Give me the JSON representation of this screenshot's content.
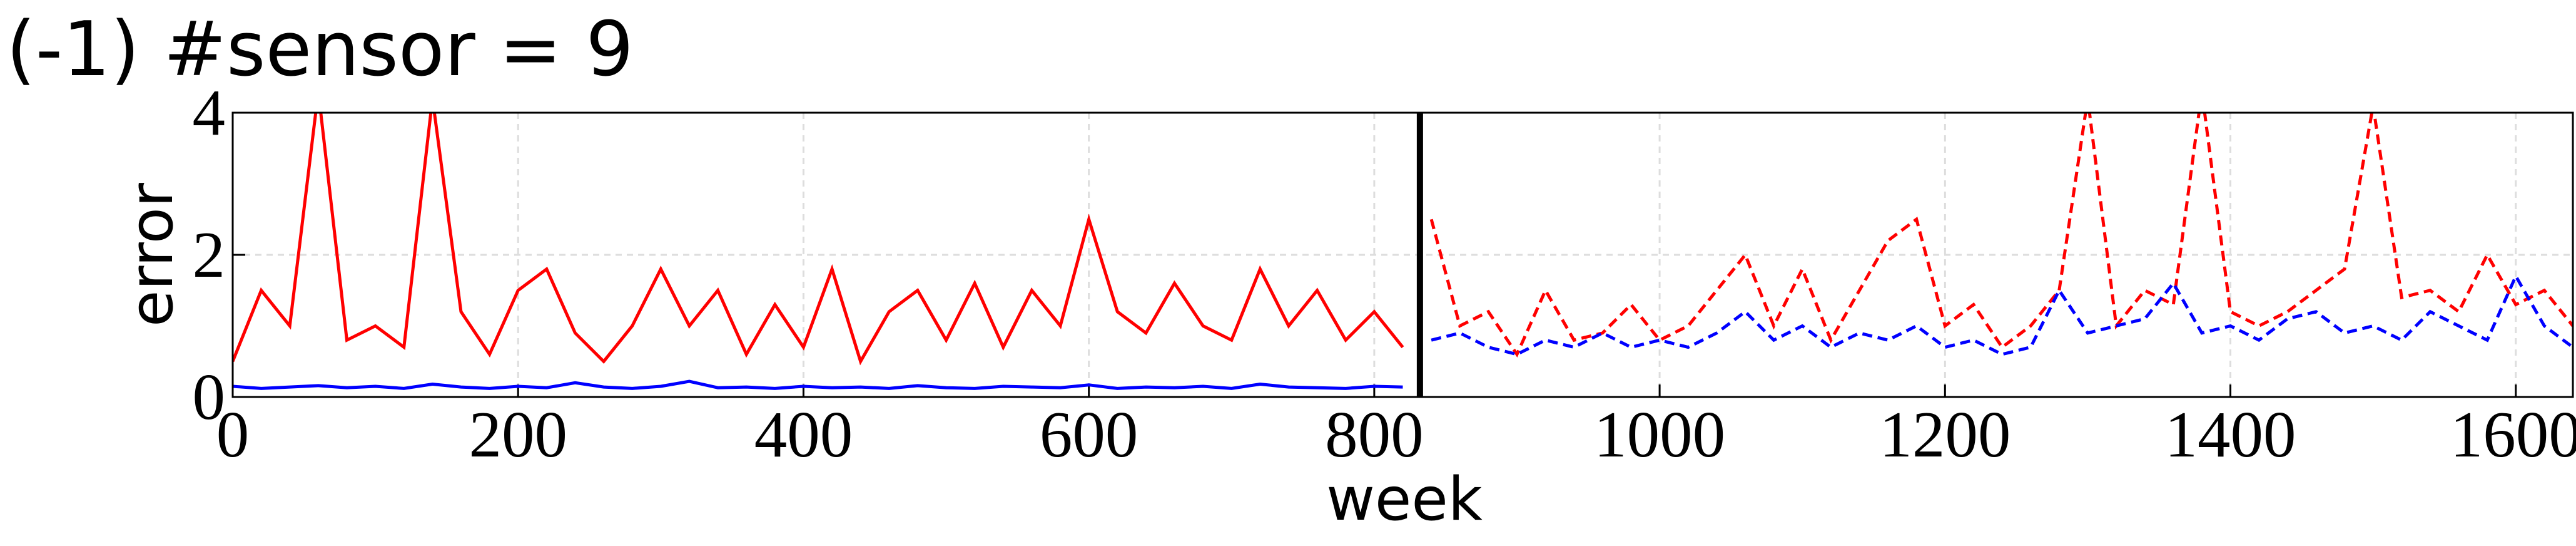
{
  "chart_data": {
    "type": "line",
    "title": "(-1) #sensor = 9",
    "xlabel": "week",
    "ylabel": "error",
    "x": [
      0,
      20,
      40,
      60,
      80,
      100,
      120,
      140,
      160,
      180,
      200,
      220,
      240,
      260,
      280,
      300,
      320,
      340,
      360,
      380,
      400,
      420,
      440,
      460,
      480,
      500,
      520,
      540,
      560,
      580,
      600,
      620,
      640,
      660,
      680,
      700,
      720,
      740,
      760,
      780,
      800,
      820,
      840,
      860,
      880,
      900,
      920,
      940,
      960,
      980,
      1000,
      1020,
      1040,
      1060,
      1080,
      1100,
      1120,
      1140,
      1160,
      1180,
      1200,
      1220,
      1240,
      1260,
      1280,
      1300,
      1320,
      1340,
      1360,
      1380,
      1400,
      1420,
      1440,
      1460,
      1480,
      1500,
      1520,
      1540,
      1560,
      1580,
      1600,
      1620,
      1640
    ],
    "series": [
      {
        "color": "#ff0000",
        "dashed": false,
        "values": [
          0.5,
          1.5,
          1.0,
          4.3,
          0.8,
          1.0,
          0.7,
          4.2,
          1.2,
          0.6,
          1.5,
          1.8,
          0.9,
          0.5,
          1.0,
          1.8,
          1.0,
          1.5,
          0.6,
          1.3,
          0.7,
          1.8,
          0.5,
          1.2,
          1.5,
          0.8,
          1.6,
          0.7,
          1.5,
          1.0,
          2.5,
          1.2,
          0.9,
          1.6,
          1.0,
          0.8,
          1.8,
          1.0,
          1.5,
          0.8,
          1.2,
          0.7,
          null,
          null,
          null,
          null,
          null,
          null,
          null,
          null,
          null,
          null,
          null,
          null,
          null,
          null,
          null,
          null,
          null,
          null,
          null,
          null,
          null,
          null,
          null,
          null,
          null,
          null,
          null,
          null,
          null,
          null,
          null,
          null,
          null,
          null,
          null,
          null,
          null,
          null,
          null,
          null,
          null
        ]
      },
      {
        "color": "#0000ff",
        "dashed": false,
        "values": [
          0.15,
          0.12,
          0.14,
          0.16,
          0.13,
          0.15,
          0.12,
          0.18,
          0.14,
          0.12,
          0.15,
          0.13,
          0.2,
          0.14,
          0.12,
          0.15,
          0.22,
          0.13,
          0.14,
          0.12,
          0.15,
          0.13,
          0.14,
          0.12,
          0.16,
          0.13,
          0.12,
          0.15,
          0.14,
          0.13,
          0.17,
          0.12,
          0.14,
          0.13,
          0.15,
          0.12,
          0.18,
          0.14,
          0.13,
          0.12,
          0.15,
          0.14,
          null,
          null,
          null,
          null,
          null,
          null,
          null,
          null,
          null,
          null,
          null,
          null,
          null,
          null,
          null,
          null,
          null,
          null,
          null,
          null,
          null,
          null,
          null,
          null,
          null,
          null,
          null,
          null,
          null,
          null,
          null,
          null,
          null,
          null,
          null,
          null,
          null,
          null,
          null,
          null,
          null
        ]
      },
      {
        "color": "#ff0000",
        "dashed": true,
        "values": [
          null,
          null,
          null,
          null,
          null,
          null,
          null,
          null,
          null,
          null,
          null,
          null,
          null,
          null,
          null,
          null,
          null,
          null,
          null,
          null,
          null,
          null,
          null,
          null,
          null,
          null,
          null,
          null,
          null,
          null,
          null,
          null,
          null,
          null,
          null,
          null,
          null,
          null,
          null,
          null,
          null,
          null,
          2.5,
          1.0,
          1.2,
          0.6,
          1.5,
          0.8,
          0.9,
          1.3,
          0.8,
          1.0,
          1.5,
          2.0,
          1.0,
          1.8,
          0.8,
          1.5,
          2.2,
          2.5,
          1.0,
          1.3,
          0.7,
          1.0,
          1.5,
          4.2,
          1.0,
          1.5,
          1.3,
          4.3,
          1.2,
          1.0,
          1.2,
          1.5,
          1.8,
          4.1,
          1.4,
          1.5,
          1.2,
          2.0,
          1.3,
          1.5,
          1.0
        ]
      },
      {
        "color": "#0000ff",
        "dashed": true,
        "values": [
          null,
          null,
          null,
          null,
          null,
          null,
          null,
          null,
          null,
          null,
          null,
          null,
          null,
          null,
          null,
          null,
          null,
          null,
          null,
          null,
          null,
          null,
          null,
          null,
          null,
          null,
          null,
          null,
          null,
          null,
          null,
          null,
          null,
          null,
          null,
          null,
          null,
          null,
          null,
          null,
          null,
          null,
          0.8,
          0.9,
          0.7,
          0.6,
          0.8,
          0.7,
          0.9,
          0.7,
          0.8,
          0.7,
          0.9,
          1.2,
          0.8,
          1.0,
          0.7,
          0.9,
          0.8,
          1.0,
          0.7,
          0.8,
          0.6,
          0.7,
          1.5,
          0.9,
          1.0,
          1.1,
          1.6,
          0.9,
          1.0,
          0.8,
          1.1,
          1.2,
          0.9,
          1.0,
          0.8,
          1.2,
          1.0,
          0.8,
          1.7,
          1.0,
          0.7
        ]
      }
    ],
    "vline": 832,
    "xlim": [
      0,
      1640
    ],
    "ylim": [
      0,
      4
    ],
    "xticks": [
      0,
      200,
      400,
      600,
      800,
      1000,
      1200,
      1400,
      1600
    ],
    "yticks": [
      0,
      2,
      4
    ],
    "grid": true
  }
}
